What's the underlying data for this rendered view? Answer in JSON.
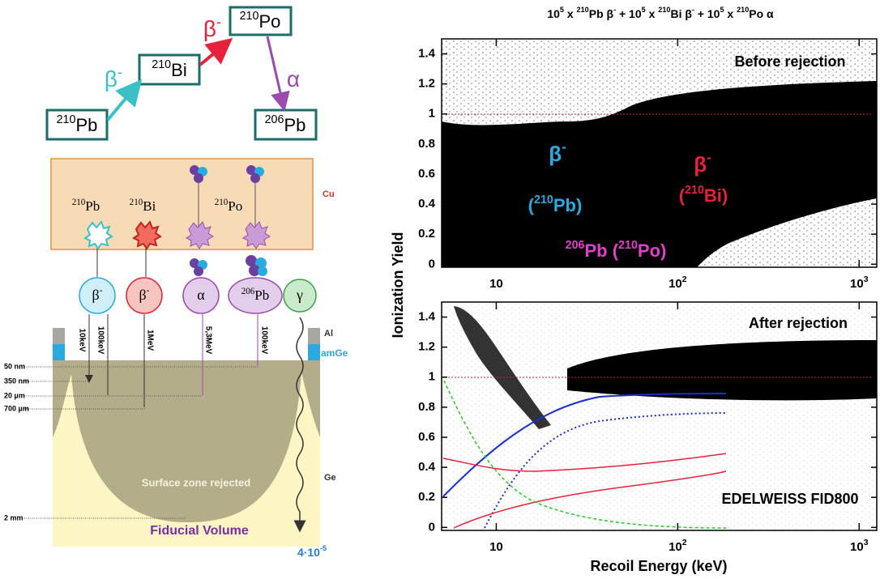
{
  "figure": {
    "decay_chain": {
      "nodes": [
        [
          {
            "sup": "210"
          },
          "Pb"
        ],
        [
          {
            "sup": "210"
          },
          "Bi"
        ],
        [
          {
            "sup": "210"
          },
          "Po"
        ],
        [
          {
            "sup": "206"
          },
          "Pb"
        ]
      ],
      "arrows": [
        [
          "β",
          {
            "sup": "-"
          }
        ],
        [
          "β",
          {
            "sup": "-"
          }
        ],
        [
          "α"
        ]
      ]
    },
    "detector": {
      "layers": [
        "Cu",
        "Al",
        "amGe",
        "Ge"
      ],
      "emitters": [
        [
          {
            "sup": "210"
          },
          "Pb"
        ],
        [
          {
            "sup": "210"
          },
          "Bi"
        ],
        [
          {
            "sup": "210"
          },
          "Po"
        ]
      ],
      "particles": [
        [
          "β",
          {
            "sup": "-"
          }
        ],
        [
          "β",
          {
            "sup": "-"
          }
        ],
        [
          "α"
        ],
        [
          {
            "sup": "206"
          },
          "Pb"
        ],
        [
          "γ"
        ]
      ],
      "energies": [
        "10keV",
        "100keV",
        "1MeV",
        "5,3MeV",
        "100keV"
      ],
      "depths": [
        "50 nm",
        "350 nm",
        "20 µm",
        "700 µm",
        "2 mm"
      ],
      "zone_label": "Surface zone rejected",
      "fiducial_label": "Fiducial Volume",
      "gamma_probability": [
        "4·10",
        {
          "sup": "-5"
        }
      ]
    }
  },
  "chart_data": [
    {
      "type": "scatter",
      "title": [
        "10",
        {
          "sup": "5"
        },
        " x ",
        {
          "sup": "210"
        },
        "Pb β",
        {
          "sup": "-"
        },
        "  +  10",
        {
          "sup": "5"
        },
        " x ",
        {
          "sup": "210"
        },
        "Bi β",
        {
          "sup": "-"
        },
        "  +  10",
        {
          "sup": "5"
        },
        " x ",
        {
          "sup": "210"
        },
        "Po α"
      ],
      "ylabel": "Ionization Yield",
      "annotations": [
        {
          "text": [
            "β",
            {
              "sup": "-"
            }
          ],
          "color": "#29abe2"
        },
        {
          "text": [
            "(",
            {
              "sup": "210"
            },
            "Pb)"
          ],
          "color": "#29abe2"
        },
        {
          "text": [
            "β",
            {
              "sup": "-"
            }
          ],
          "color": "#e8213a"
        },
        {
          "text": [
            "(",
            {
              "sup": "210"
            },
            "Bi)"
          ],
          "color": "#e8213a"
        },
        {
          "text": [
            {
              "sup": "206"
            },
            "Pb (",
            {
              "sup": "210"
            },
            "Po)"
          ],
          "color": "#e040c8"
        },
        {
          "text": [
            "Before rejection"
          ],
          "color": "#000000"
        }
      ],
      "log_x": true,
      "xlim": [
        5,
        1250
      ],
      "ylim": [
        -0.02,
        1.5
      ],
      "xticks": [
        10,
        {
          "value": 100,
          "label": "10",
          "sup": "2"
        },
        {
          "value": 1000,
          "label": "10",
          "sup": "3"
        }
      ],
      "yticks": [
        0,
        0.2,
        0.4,
        0.6,
        0.8,
        1,
        1.2,
        1.4
      ]
    },
    {
      "type": "scatter",
      "xlabel": "Recoil Energy (keV)",
      "annotations": [
        {
          "text": [
            "After rejection"
          ],
          "color": "#000000"
        },
        {
          "text": [
            "EDELWEISS FID800"
          ],
          "color": "#000000"
        }
      ],
      "log_x": true,
      "xlim": [
        5,
        1250
      ],
      "ylim": [
        -0.02,
        1.5
      ],
      "xticks": [
        10,
        {
          "value": 100,
          "label": "10",
          "sup": "2"
        },
        {
          "value": 1000,
          "label": "10",
          "sup": "3"
        }
      ],
      "yticks": [
        0,
        0.2,
        0.4,
        0.6,
        0.8,
        1,
        1.2,
        1.4
      ]
    }
  ]
}
